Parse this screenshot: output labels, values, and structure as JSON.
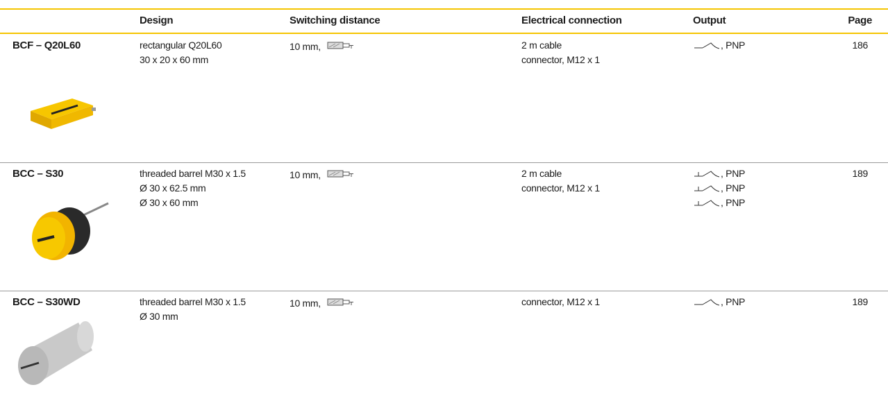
{
  "table": {
    "columns": [
      "Design",
      "Switching distance",
      "Electrical connection",
      "Output",
      "Page"
    ],
    "rows": [
      {
        "name": "BCF – Q20L60",
        "design": [
          "rectangular Q20L60",
          "30 x  20 x 60 mm"
        ],
        "switching_distance": "10 mm,",
        "electrical_connection": [
          "2 m cable",
          "connector, M12 x 1"
        ],
        "output": [
          ", PNP"
        ],
        "page": 186
      },
      {
        "name": "BCC – S30",
        "design": [
          "threaded barrel M30 x 1.5",
          "Ø 30 x  62.5 mm",
          "Ø 30 x  60 mm"
        ],
        "switching_distance": "10 mm,",
        "electrical_connection": [
          "2 m cable",
          "connector, M12 x 1"
        ],
        "output": [
          ", PNP",
          ", PNP",
          ", PNP"
        ],
        "page": 189
      },
      {
        "name": "BCC – S30WD",
        "design": [
          "threaded barrel M30 x 1.5",
          "Ø 30 mm"
        ],
        "switching_distance": "10 mm,",
        "electrical_connection": [
          "connector, M12 x 1"
        ],
        "output": [
          ", PNP"
        ],
        "page": 189
      }
    ]
  }
}
